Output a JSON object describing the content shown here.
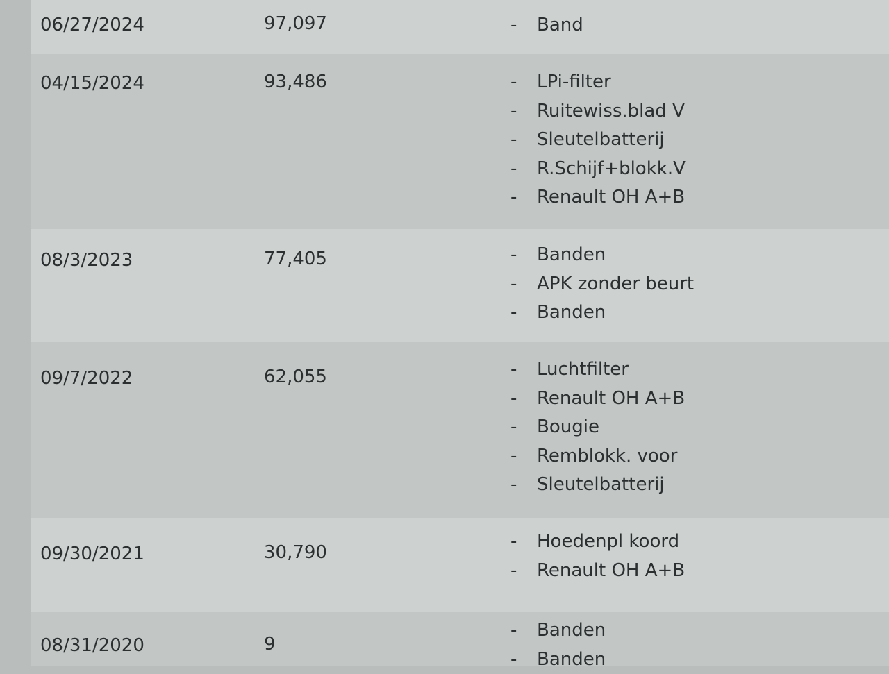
{
  "service_history": {
    "rows": [
      {
        "date": "06/27/2024",
        "mileage": "97,097",
        "items": [
          "Band"
        ]
      },
      {
        "date": "04/15/2024",
        "mileage": "93,486",
        "items": [
          "LPi-filter",
          "Ruitewiss.blad V",
          "Sleutelbatterij",
          "R.Schijf+blokk.V",
          "Renault OH A+B"
        ]
      },
      {
        "date": "08/3/2023",
        "mileage": "77,405",
        "items": [
          "Banden",
          "APK zonder beurt",
          "Banden"
        ]
      },
      {
        "date": "09/7/2022",
        "mileage": "62,055",
        "items": [
          "Luchtfilter",
          "Renault OH A+B",
          "Bougie",
          "Remblokk. voor",
          "Sleutelbatterij"
        ]
      },
      {
        "date": "09/30/2021",
        "mileage": "30,790",
        "items": [
          "Hoedenpl koord",
          "Renault OH A+B"
        ]
      },
      {
        "date": "08/31/2020",
        "mileage": "9",
        "items": [
          "Banden",
          "Banden"
        ]
      }
    ],
    "bullet": "-"
  }
}
